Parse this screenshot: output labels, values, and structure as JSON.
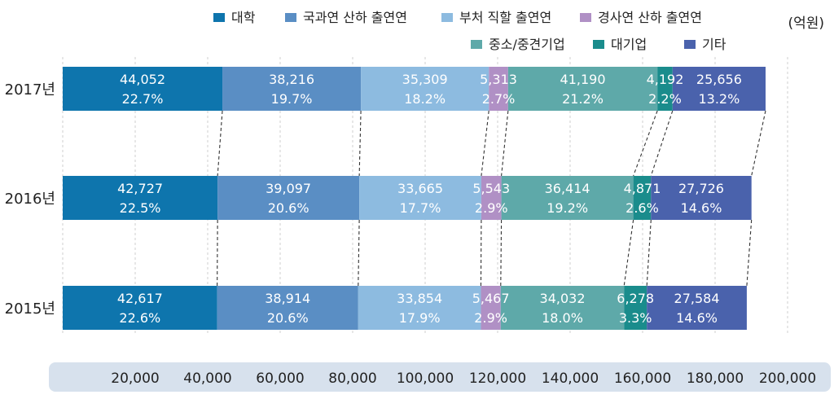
{
  "chart_data": {
    "type": "bar",
    "orientation": "horizontal",
    "stacked": true,
    "unit_label": "(억원)",
    "categories": [
      "2017년",
      "2016년",
      "2015년"
    ],
    "series": [
      {
        "name": "대학",
        "color": "#0e75ad",
        "values": [
          44052,
          42727,
          42617
        ],
        "percents": [
          "22.7%",
          "22.5%",
          "22.6%"
        ]
      },
      {
        "name": "국과연 산하 출연연",
        "color": "#5a8ec4",
        "values": [
          38216,
          39097,
          38914
        ],
        "percents": [
          "19.7%",
          "20.6%",
          "20.6%"
        ]
      },
      {
        "name": "부처 직할 출연연",
        "color": "#8dbbe0",
        "values": [
          35309,
          33665,
          33854
        ],
        "percents": [
          "18.2%",
          "17.7%",
          "17.9%"
        ]
      },
      {
        "name": "경사연 산하 출연연",
        "color": "#b090c5",
        "values": [
          5313,
          5543,
          5467
        ],
        "percents": [
          "2.7%",
          "2.9%",
          "2.9%"
        ]
      },
      {
        "name": "중소/중견기업",
        "color": "#5ea9a9",
        "values": [
          41190,
          36414,
          34032
        ],
        "percents": [
          "21.2%",
          "19.2%",
          "18.0%"
        ]
      },
      {
        "name": "대기업",
        "color": "#1a8c8c",
        "values": [
          4192,
          4871,
          6278
        ],
        "percents": [
          "2.2%",
          "2.6%",
          "3.3%"
        ]
      },
      {
        "name": "기타",
        "color": "#4a62ac",
        "values": [
          25656,
          27726,
          27584
        ],
        "percents": [
          "13.2%",
          "14.6%",
          "14.6%"
        ]
      }
    ],
    "value_labels": [
      [
        "44,052",
        "38,216",
        "35,309",
        "5,313",
        "41,190",
        "4,192",
        "25,656"
      ],
      [
        "42,727",
        "39,097",
        "33,665",
        "5,543",
        "36,414",
        "4,871",
        "27,726"
      ],
      [
        "42,617",
        "38,914",
        "33,854",
        "5,467",
        "34,032",
        "6,278",
        "27,584"
      ]
    ],
    "x_ticks": [
      20000,
      40000,
      60000,
      80000,
      100000,
      120000,
      140000,
      160000,
      180000,
      200000
    ],
    "x_tick_labels": [
      "20,000",
      "40,000",
      "60,000",
      "80,000",
      "100,000",
      "120,000",
      "140,000",
      "160,000",
      "180,000",
      "200,000"
    ],
    "xlim": [
      0,
      200000
    ],
    "grid": true,
    "legend_position": "top-right",
    "connector_lines": true
  }
}
